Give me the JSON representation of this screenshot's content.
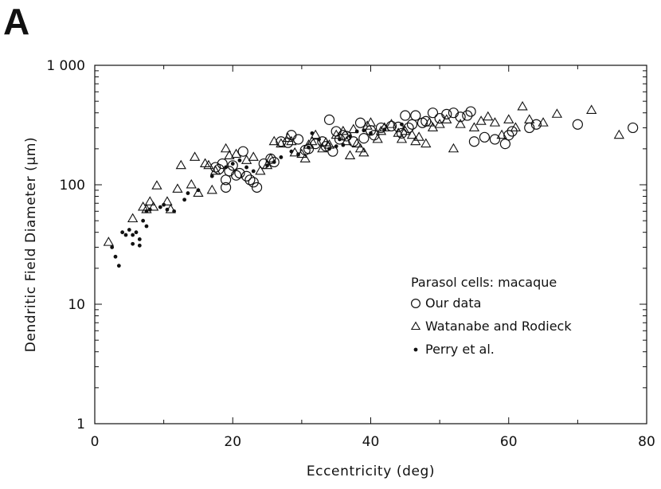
{
  "panel_label": "A",
  "chart_data": {
    "type": "scatter",
    "xlabel": "Eccentricity (deg)",
    "ylabel": "Dendritic Field Diameter (µm)",
    "xlim": [
      0,
      80
    ],
    "ylim": [
      1,
      1000
    ],
    "yscale": "log",
    "xticks": [
      0,
      20,
      40,
      60,
      80
    ],
    "xtick_labels": [
      "0",
      "20",
      "40",
      "60",
      "80"
    ],
    "yticks": [
      1,
      10,
      100,
      1000
    ],
    "ytick_labels": [
      "1",
      "10",
      "100",
      "1 000"
    ],
    "grid": false,
    "legend_placement": "lower-right",
    "legend_title": "Parasol cells: macaque",
    "series": [
      {
        "name": "Our data",
        "marker": "open-circle",
        "points": [
          [
            17.5,
            140
          ],
          [
            18,
            135
          ],
          [
            18.5,
            150
          ],
          [
            19,
            110
          ],
          [
            19,
            95
          ],
          [
            19.5,
            130
          ],
          [
            20,
            145
          ],
          [
            20.5,
            120
          ],
          [
            21,
            125
          ],
          [
            21.5,
            190
          ],
          [
            22,
            118
          ],
          [
            22.5,
            110
          ],
          [
            23,
            105
          ],
          [
            23.5,
            95
          ],
          [
            24.5,
            150
          ],
          [
            25.5,
            165
          ],
          [
            26,
            155
          ],
          [
            27,
            230
          ],
          [
            28,
            225
          ],
          [
            28.5,
            260
          ],
          [
            29.5,
            240
          ],
          [
            31,
            200
          ],
          [
            32,
            220
          ],
          [
            33,
            230
          ],
          [
            33.5,
            210
          ],
          [
            34,
            350
          ],
          [
            34.5,
            190
          ],
          [
            35,
            280
          ],
          [
            35.5,
            240
          ],
          [
            36.5,
            255
          ],
          [
            37.5,
            230
          ],
          [
            38.5,
            330
          ],
          [
            39,
            245
          ],
          [
            40,
            285
          ],
          [
            40.5,
            260
          ],
          [
            41.5,
            300
          ],
          [
            43,
            310
          ],
          [
            44,
            305
          ],
          [
            45,
            380
          ],
          [
            45.5,
            300
          ],
          [
            46,
            320
          ],
          [
            46.5,
            380
          ],
          [
            47.5,
            330
          ],
          [
            48,
            340
          ],
          [
            49,
            400
          ],
          [
            50,
            360
          ],
          [
            51,
            390
          ],
          [
            52,
            400
          ],
          [
            53,
            370
          ],
          [
            54,
            380
          ],
          [
            54.5,
            410
          ],
          [
            55,
            230
          ],
          [
            56.5,
            250
          ],
          [
            58,
            240
          ],
          [
            59.5,
            220
          ],
          [
            60,
            260
          ],
          [
            60.5,
            280
          ],
          [
            63,
            300
          ],
          [
            64,
            320
          ],
          [
            70,
            320
          ],
          [
            78,
            300
          ],
          [
            36,
            260
          ],
          [
            44.5,
            270
          ],
          [
            30.5,
            195
          ]
        ]
      },
      {
        "name": "Watanabe and Rodieck",
        "marker": "open-triangle",
        "points": [
          [
            2,
            33
          ],
          [
            5.5,
            52
          ],
          [
            7,
            65
          ],
          [
            7.5,
            62
          ],
          [
            8,
            72
          ],
          [
            8.5,
            65
          ],
          [
            9,
            98
          ],
          [
            10.5,
            72
          ],
          [
            11,
            62
          ],
          [
            12,
            92
          ],
          [
            12.5,
            145
          ],
          [
            14,
            100
          ],
          [
            14.5,
            170
          ],
          [
            15,
            85
          ],
          [
            16,
            150
          ],
          [
            16.5,
            145
          ],
          [
            17,
            90
          ],
          [
            17.5,
            130
          ],
          [
            19,
            200
          ],
          [
            19.5,
            175
          ],
          [
            20.5,
            180
          ],
          [
            22,
            160
          ],
          [
            23,
            170
          ],
          [
            24,
            130
          ],
          [
            25,
            145
          ],
          [
            25.5,
            165
          ],
          [
            26,
            230
          ],
          [
            27,
            220
          ],
          [
            28,
            245
          ],
          [
            28.5,
            230
          ],
          [
            29,
            185
          ],
          [
            30,
            180
          ],
          [
            30.5,
            165
          ],
          [
            31,
            215
          ],
          [
            31.5,
            230
          ],
          [
            32,
            260
          ],
          [
            33,
            200
          ],
          [
            33.5,
            225
          ],
          [
            34,
            215
          ],
          [
            35,
            260
          ],
          [
            36,
            280
          ],
          [
            36.5,
            230
          ],
          [
            37,
            175
          ],
          [
            37.5,
            290
          ],
          [
            38,
            220
          ],
          [
            39,
            185
          ],
          [
            39.5,
            310
          ],
          [
            40,
            330
          ],
          [
            41,
            240
          ],
          [
            41.5,
            280
          ],
          [
            42,
            300
          ],
          [
            43,
            320
          ],
          [
            44,
            270
          ],
          [
            44.5,
            240
          ],
          [
            45,
            280
          ],
          [
            46,
            260
          ],
          [
            47,
            250
          ],
          [
            48,
            220
          ],
          [
            48.5,
            330
          ],
          [
            49,
            300
          ],
          [
            50,
            320
          ],
          [
            51,
            350
          ],
          [
            52,
            200
          ],
          [
            53,
            320
          ],
          [
            55,
            300
          ],
          [
            56,
            340
          ],
          [
            57,
            370
          ],
          [
            58,
            330
          ],
          [
            59,
            260
          ],
          [
            60,
            350
          ],
          [
            61,
            300
          ],
          [
            62,
            450
          ],
          [
            63,
            350
          ],
          [
            65,
            330
          ],
          [
            67,
            390
          ],
          [
            72,
            420
          ],
          [
            76,
            260
          ],
          [
            46.5,
            230
          ],
          [
            38.5,
            200
          ]
        ]
      },
      {
        "name": "Perry et al.",
        "marker": "filled-dot",
        "points": [
          [
            2.5,
            30
          ],
          [
            3,
            25
          ],
          [
            3.5,
            21
          ],
          [
            4,
            40
          ],
          [
            4.5,
            38
          ],
          [
            5,
            42
          ],
          [
            5.5,
            38
          ],
          [
            5.5,
            32
          ],
          [
            6,
            40
          ],
          [
            6.5,
            35
          ],
          [
            6.5,
            31
          ],
          [
            7,
            50
          ],
          [
            7.5,
            45
          ],
          [
            7.5,
            60
          ],
          [
            8,
            62
          ],
          [
            9.5,
            65
          ],
          [
            10,
            68
          ],
          [
            10.5,
            62
          ],
          [
            11.5,
            60
          ],
          [
            13,
            75
          ],
          [
            13.5,
            85
          ],
          [
            15,
            90
          ],
          [
            17,
            118
          ],
          [
            19,
            140
          ],
          [
            20,
            150
          ],
          [
            21,
            160
          ],
          [
            22,
            140
          ],
          [
            23,
            130
          ],
          [
            25,
            145
          ],
          [
            26,
            155
          ],
          [
            27,
            170
          ],
          [
            28.5,
            190
          ],
          [
            29.5,
            180
          ],
          [
            31,
            205
          ],
          [
            31.5,
            270
          ],
          [
            32.5,
            240
          ],
          [
            34,
            200
          ],
          [
            35,
            210
          ],
          [
            36,
            215
          ],
          [
            37,
            255
          ],
          [
            38,
            280
          ],
          [
            39,
            285
          ],
          [
            40,
            270
          ],
          [
            42,
            290
          ],
          [
            44.5,
            320
          ],
          [
            35.5,
            240
          ]
        ]
      }
    ]
  }
}
